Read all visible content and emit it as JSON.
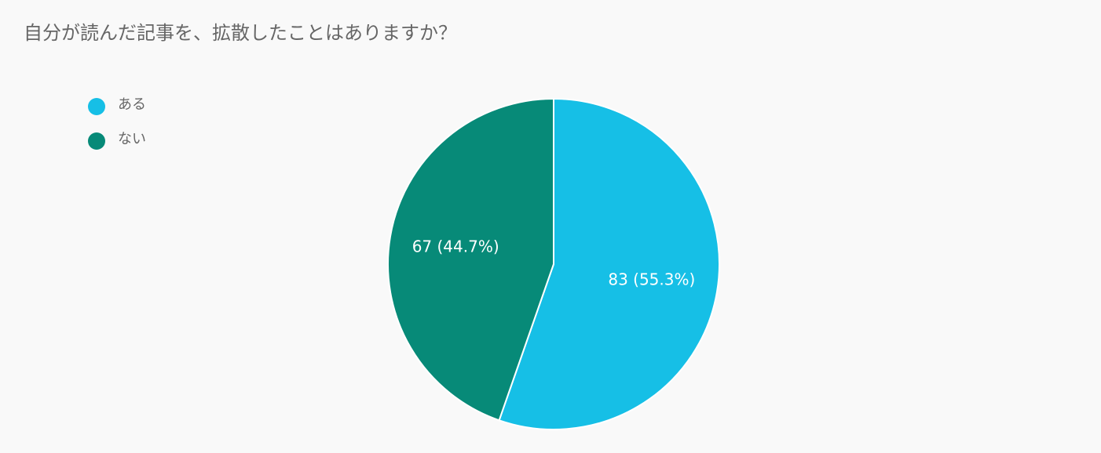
{
  "chart_data": {
    "type": "pie",
    "title": "自分が読んだ記事を、拡散したことはありますか？",
    "categories": [
      "ある",
      "ない"
    ],
    "values": [
      83,
      67
    ],
    "value_labels": [
      "83 (55.3%)",
      "67 (44.7%)"
    ],
    "colors": [
      "#16bfe6",
      "#078a78"
    ],
    "legend": "top-left"
  }
}
